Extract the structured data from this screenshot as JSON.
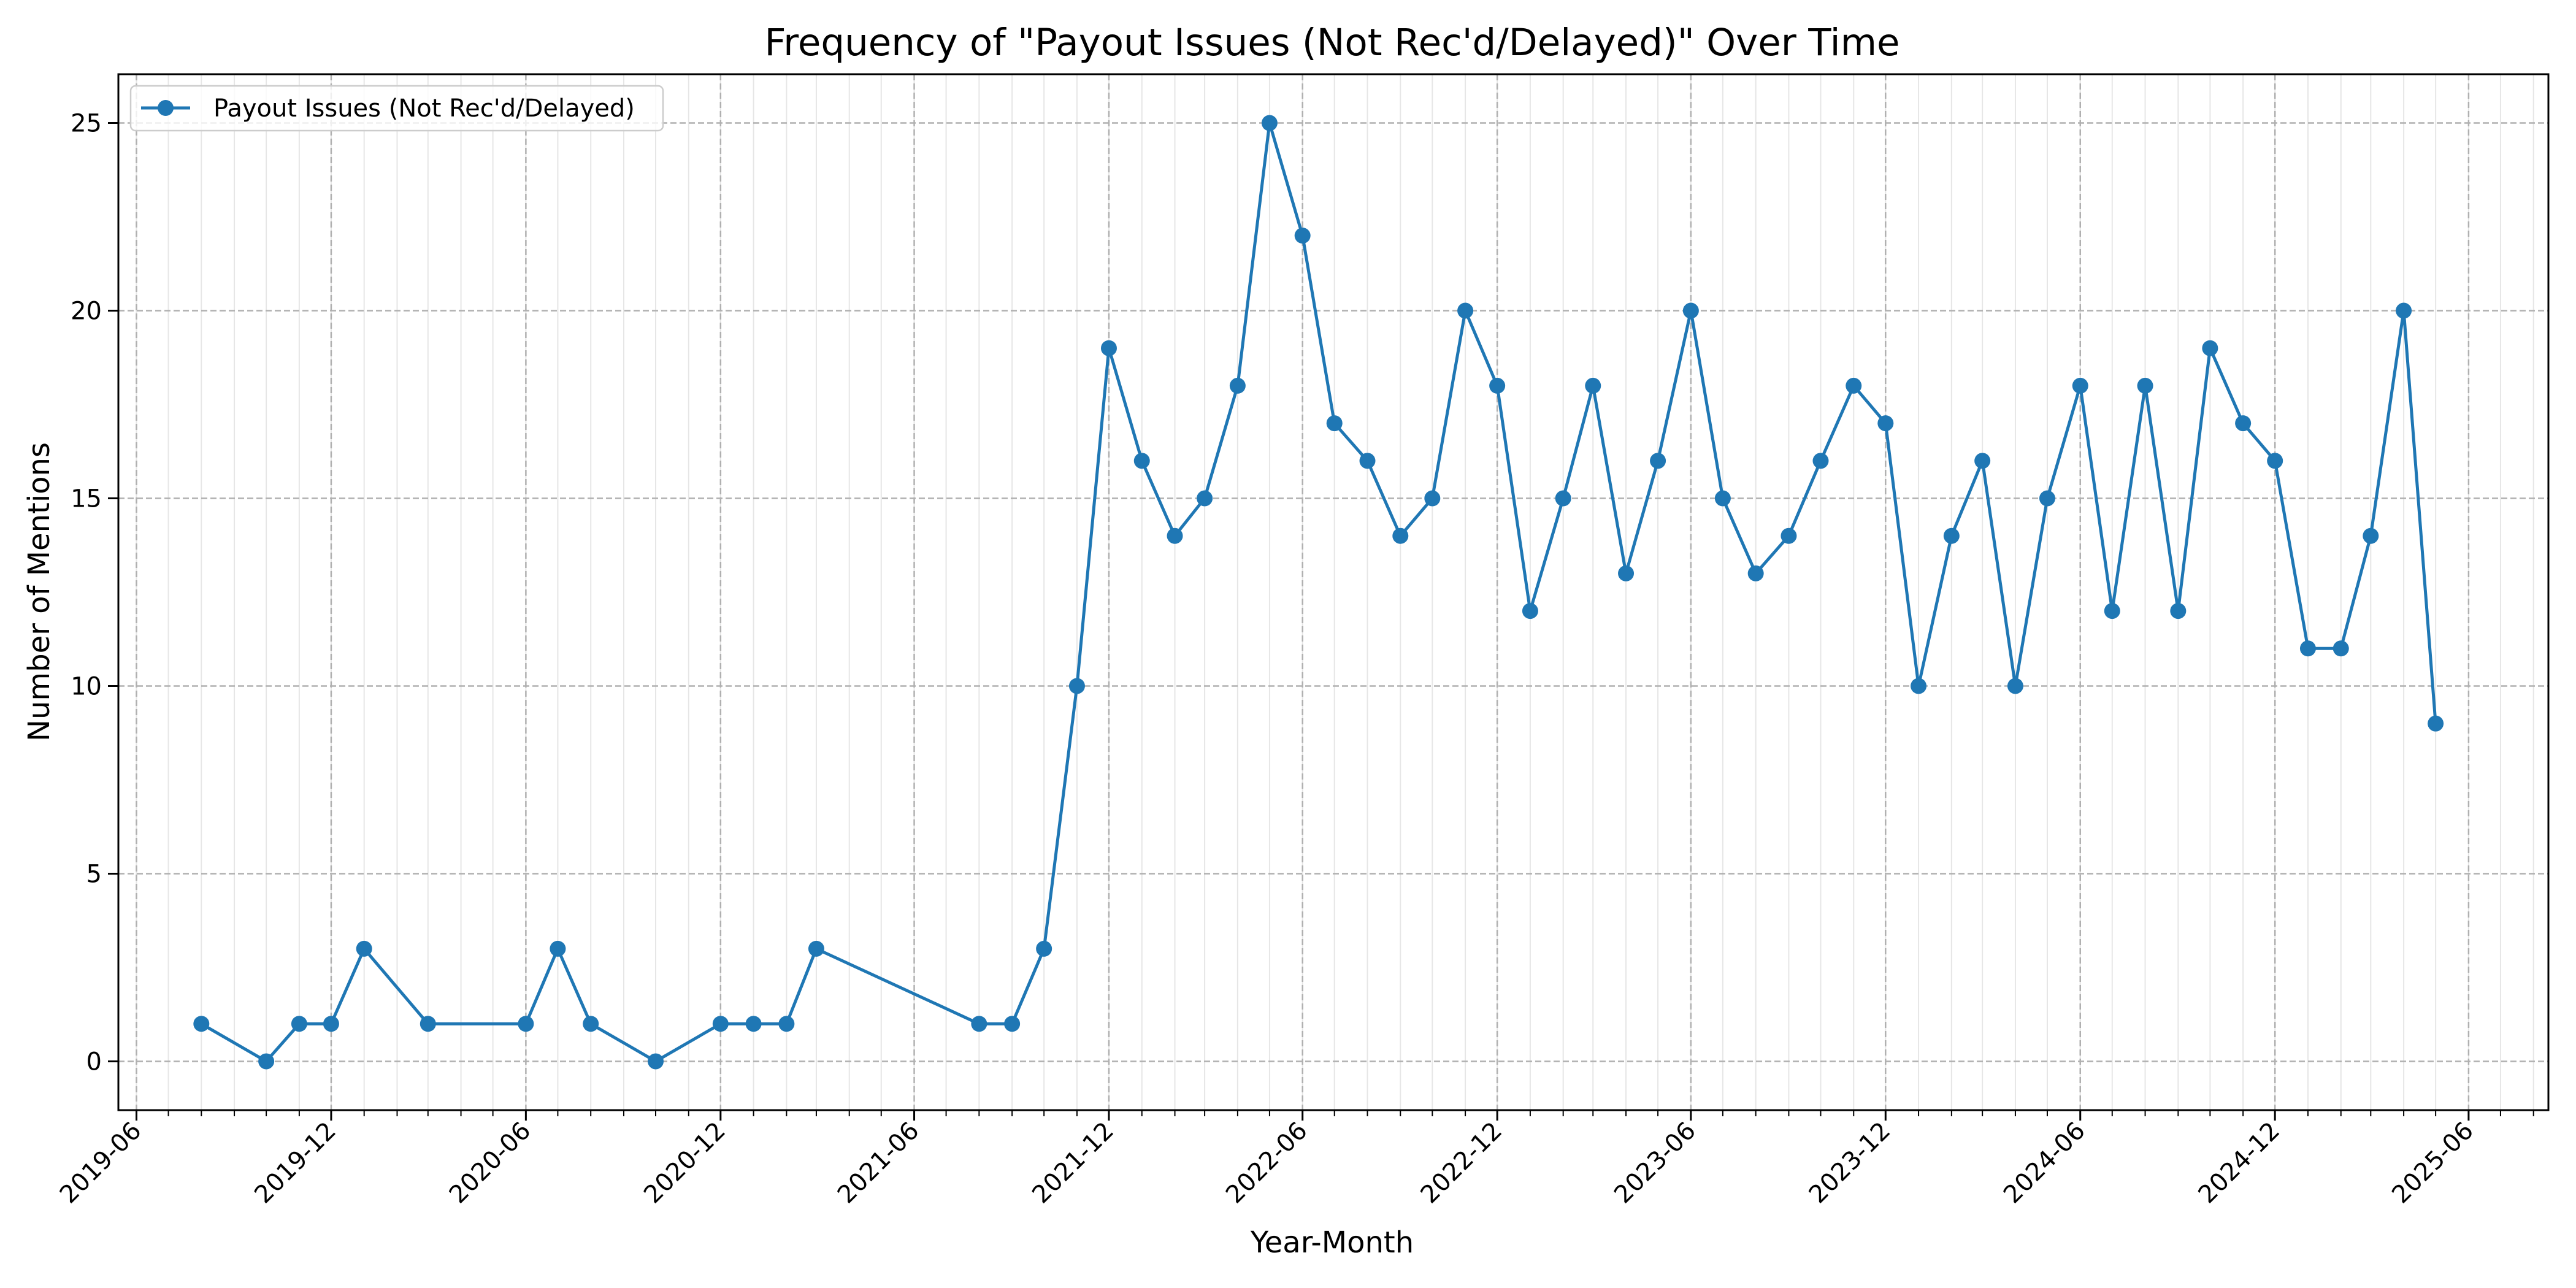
{
  "chart_data": {
    "type": "line",
    "title": "Frequency of \"Payout Issues (Not Rec'd/Delayed)\" Over Time",
    "xlabel": "Year-Month",
    "ylabel": "Number of Mentions",
    "x_tick_labels": [
      "2019-06",
      "2019-12",
      "2020-06",
      "2020-12",
      "2021-06",
      "2021-12",
      "2022-06",
      "2022-12",
      "2023-06",
      "2023-12",
      "2024-06",
      "2024-12",
      "2025-06"
    ],
    "y_ticks": [
      0,
      5,
      10,
      15,
      20,
      25
    ],
    "xlim": [
      "2019-05-15",
      "2025-08-15"
    ],
    "ylim": [
      -1.3,
      26.3
    ],
    "grid": true,
    "legend_position": "upper-left",
    "color": "#1f77b4",
    "series": [
      {
        "name": "Payout Issues (Not Rec'd/Delayed)",
        "points": [
          [
            "2019-08",
            1
          ],
          [
            "2019-10",
            0
          ],
          [
            "2019-11",
            1
          ],
          [
            "2019-12",
            1
          ],
          [
            "2020-01",
            3
          ],
          [
            "2020-03",
            1
          ],
          [
            "2020-06",
            1
          ],
          [
            "2020-07",
            3
          ],
          [
            "2020-08",
            1
          ],
          [
            "2020-10",
            0
          ],
          [
            "2020-12",
            1
          ],
          [
            "2021-01",
            1
          ],
          [
            "2021-02",
            1
          ],
          [
            "2021-03",
            3
          ],
          [
            "2021-08",
            1
          ],
          [
            "2021-09",
            1
          ],
          [
            "2021-10",
            3
          ],
          [
            "2021-11",
            10
          ],
          [
            "2021-12",
            19
          ],
          [
            "2022-01",
            16
          ],
          [
            "2022-02",
            14
          ],
          [
            "2022-03",
            15
          ],
          [
            "2022-04",
            18
          ],
          [
            "2022-05",
            25
          ],
          [
            "2022-06",
            22
          ],
          [
            "2022-07",
            17
          ],
          [
            "2022-08",
            16
          ],
          [
            "2022-09",
            14
          ],
          [
            "2022-10",
            15
          ],
          [
            "2022-11",
            20
          ],
          [
            "2022-12",
            18
          ],
          [
            "2023-01",
            12
          ],
          [
            "2023-02",
            15
          ],
          [
            "2023-03",
            18
          ],
          [
            "2023-04",
            13
          ],
          [
            "2023-05",
            16
          ],
          [
            "2023-06",
            20
          ],
          [
            "2023-07",
            15
          ],
          [
            "2023-08",
            13
          ],
          [
            "2023-09",
            14
          ],
          [
            "2023-10",
            16
          ],
          [
            "2023-11",
            18
          ],
          [
            "2023-12",
            17
          ],
          [
            "2024-01",
            10
          ],
          [
            "2024-02",
            14
          ],
          [
            "2024-03",
            16
          ],
          [
            "2024-04",
            10
          ],
          [
            "2024-05",
            15
          ],
          [
            "2024-06",
            18
          ],
          [
            "2024-07",
            12
          ],
          [
            "2024-08",
            18
          ],
          [
            "2024-09",
            12
          ],
          [
            "2024-10",
            19
          ],
          [
            "2024-11",
            17
          ],
          [
            "2024-12",
            16
          ],
          [
            "2025-01",
            11
          ],
          [
            "2025-02",
            11
          ],
          [
            "2025-03",
            14
          ],
          [
            "2025-04",
            20
          ],
          [
            "2025-05",
            9
          ]
        ]
      }
    ]
  }
}
